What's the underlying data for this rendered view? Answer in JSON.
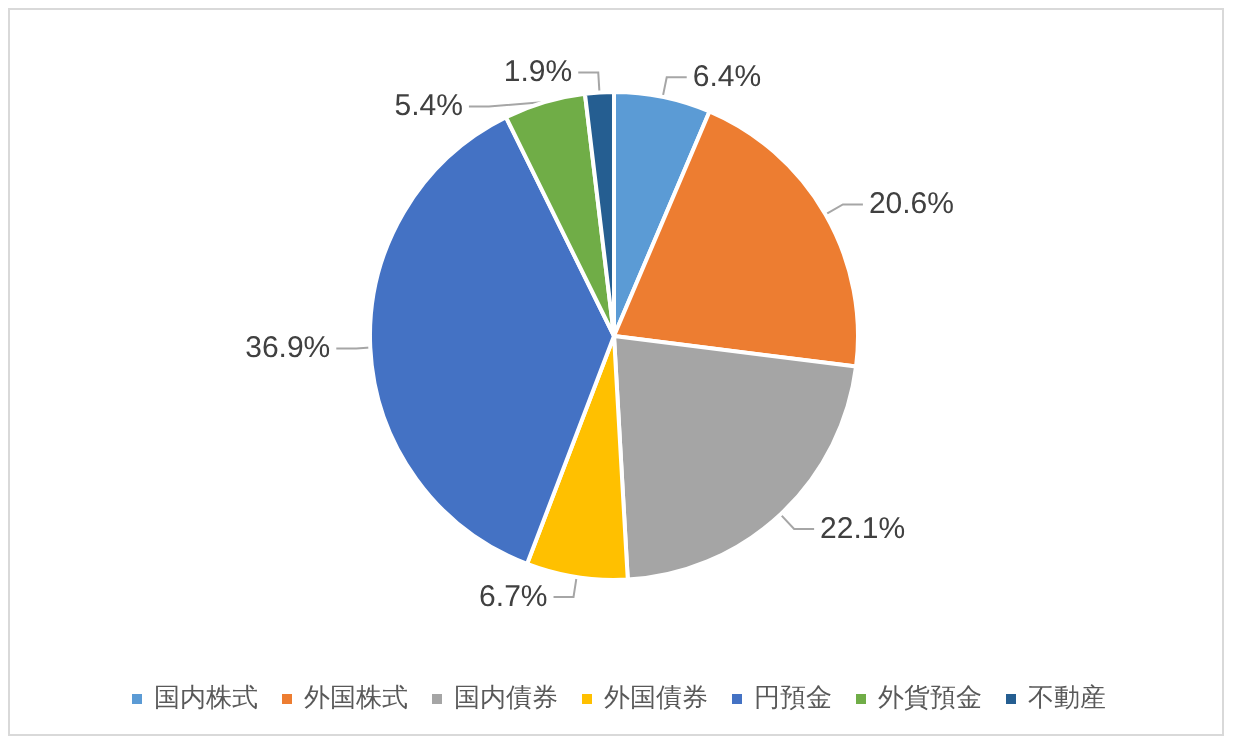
{
  "chart_data": {
    "type": "pie",
    "categories": [
      "国内株式",
      "外国株式",
      "国内債券",
      "外国債券",
      "円預金",
      "外貨預金",
      "不動産"
    ],
    "values": [
      6.4,
      20.6,
      22.1,
      6.7,
      36.9,
      5.4,
      1.9
    ],
    "colors": [
      "#5b9bd5",
      "#ed7d31",
      "#a5a5a5",
      "#ffc000",
      "#4472c4",
      "#70ad47",
      "#255e91"
    ],
    "value_labels": [
      "6.4%",
      "20.6%",
      "22.1%",
      "6.7%",
      "36.9%",
      "5.4%",
      "1.9%"
    ],
    "legend": "bottom"
  }
}
